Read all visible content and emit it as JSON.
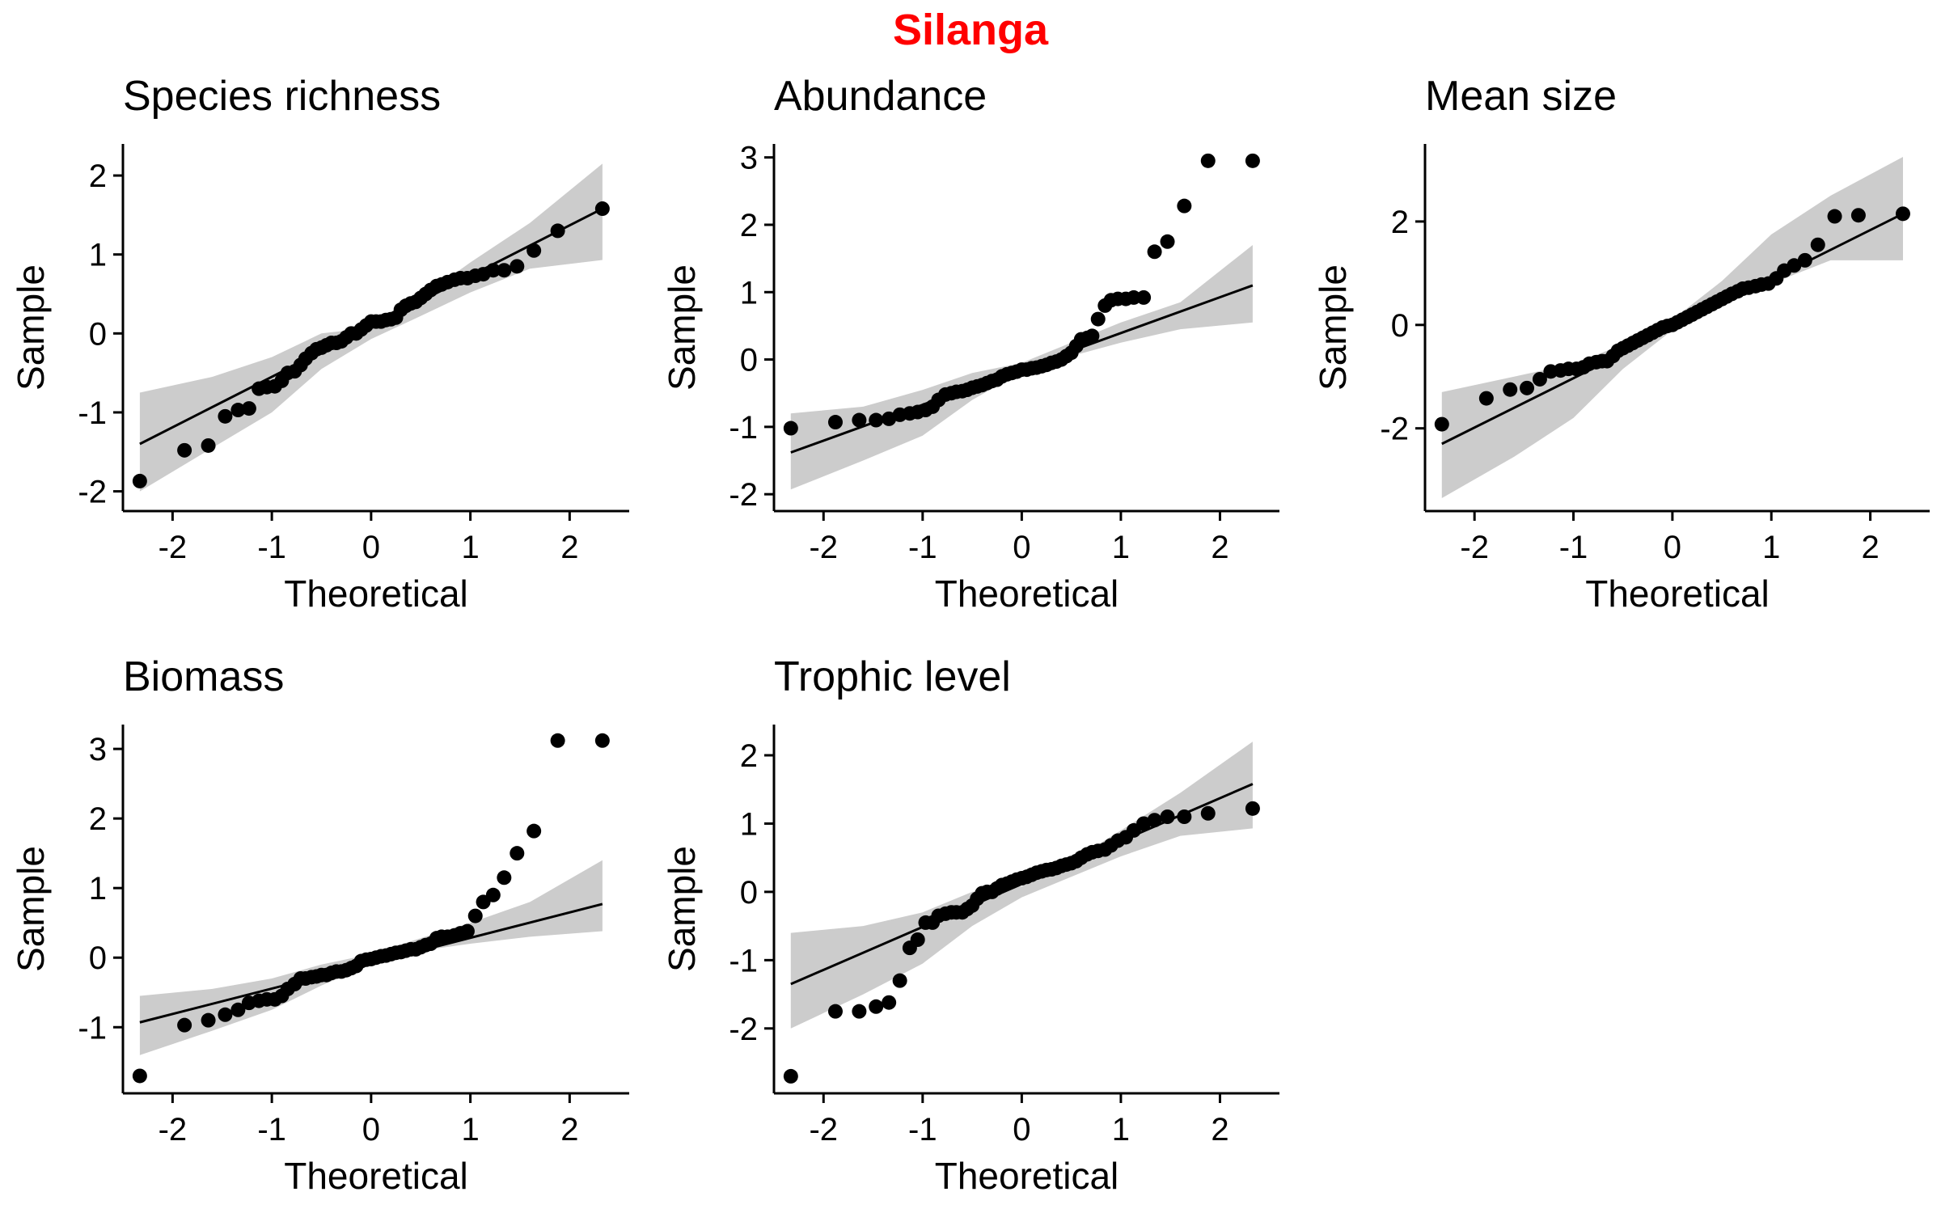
{
  "title": "Silanga",
  "colors": {
    "title": "#ff0000",
    "points": "#000000",
    "band": "#cccccc",
    "line": "#000000"
  },
  "chart_data": [
    {
      "type": "scatter",
      "title": "Species richness",
      "xlabel": "Theoretical",
      "ylabel": "Sample",
      "xlim": [
        -2.5,
        2.6
      ],
      "ylim": [
        -2.25,
        2.4
      ],
      "xticks": [
        "-2",
        "-1",
        "0",
        "1",
        "2"
      ],
      "yticks": [
        "-2",
        "-1",
        "0",
        "1",
        "2"
      ],
      "line": {
        "x": [
          -2.33,
          2.33
        ],
        "y": [
          -1.4,
          1.58
        ]
      },
      "band": {
        "x": [
          -2.33,
          -1.6,
          -1.0,
          -0.5,
          0.0,
          0.5,
          1.0,
          1.6,
          2.33
        ],
        "lower": [
          -2.0,
          -1.45,
          -1.0,
          -0.45,
          -0.07,
          0.22,
          0.52,
          0.82,
          0.93
        ],
        "upper": [
          -0.75,
          -0.55,
          -0.3,
          0.0,
          0.07,
          0.45,
          0.9,
          1.4,
          2.15
        ]
      },
      "points": {
        "x": [
          -2.33,
          -1.88,
          -1.64,
          -1.47,
          -1.34,
          -1.23,
          -1.13,
          -1.05,
          -0.97,
          -0.9,
          -0.84,
          -0.77,
          -0.71,
          -0.66,
          -0.6,
          -0.55,
          -0.5,
          -0.45,
          -0.4,
          -0.35,
          -0.3,
          -0.25,
          -0.2,
          -0.15,
          -0.1,
          -0.05,
          0.0,
          0.05,
          0.1,
          0.15,
          0.2,
          0.25,
          0.3,
          0.35,
          0.4,
          0.45,
          0.5,
          0.55,
          0.6,
          0.66,
          0.71,
          0.77,
          0.84,
          0.9,
          0.97,
          1.05,
          1.13,
          1.23,
          1.34,
          1.47,
          1.64,
          1.88,
          2.33
        ],
        "y": [
          -1.87,
          -1.48,
          -1.42,
          -1.05,
          -0.97,
          -0.95,
          -0.7,
          -0.68,
          -0.67,
          -0.6,
          -0.5,
          -0.48,
          -0.4,
          -0.32,
          -0.25,
          -0.2,
          -0.18,
          -0.15,
          -0.12,
          -0.12,
          -0.1,
          -0.05,
          0.0,
          0.0,
          0.05,
          0.1,
          0.15,
          0.15,
          0.15,
          0.17,
          0.18,
          0.2,
          0.3,
          0.35,
          0.38,
          0.4,
          0.45,
          0.5,
          0.55,
          0.6,
          0.62,
          0.65,
          0.68,
          0.7,
          0.7,
          0.73,
          0.75,
          0.8,
          0.8,
          0.85,
          1.05,
          1.3,
          1.58
        ]
      }
    },
    {
      "type": "scatter",
      "title": "Abundance",
      "xlabel": "Theoretical",
      "ylabel": "Sample",
      "xlim": [
        -2.5,
        2.6
      ],
      "ylim": [
        -2.25,
        3.2
      ],
      "xticks": [
        "-2",
        "-1",
        "0",
        "1",
        "2"
      ],
      "yticks": [
        "-2",
        "-1",
        "0",
        "1",
        "2",
        "3"
      ],
      "line": {
        "x": [
          -2.33,
          2.33
        ],
        "y": [
          -1.38,
          1.1
        ]
      },
      "band": {
        "x": [
          -2.33,
          -1.6,
          -1.0,
          -0.5,
          0.0,
          0.5,
          1.0,
          1.6,
          2.33
        ],
        "lower": [
          -1.93,
          -1.5,
          -1.13,
          -0.6,
          -0.18,
          0.05,
          0.25,
          0.45,
          0.55
        ],
        "upper": [
          -0.8,
          -0.7,
          -0.45,
          -0.2,
          -0.05,
          0.25,
          0.55,
          0.85,
          1.7
        ]
      },
      "points": {
        "x": [
          -2.33,
          -1.88,
          -1.64,
          -1.47,
          -1.34,
          -1.23,
          -1.13,
          -1.05,
          -0.97,
          -0.9,
          -0.84,
          -0.77,
          -0.71,
          -0.66,
          -0.6,
          -0.55,
          -0.5,
          -0.45,
          -0.4,
          -0.35,
          -0.3,
          -0.25,
          -0.2,
          -0.15,
          -0.1,
          -0.05,
          0.0,
          0.05,
          0.1,
          0.15,
          0.2,
          0.25,
          0.3,
          0.35,
          0.4,
          0.45,
          0.5,
          0.55,
          0.6,
          0.66,
          0.71,
          0.77,
          0.84,
          0.9,
          0.97,
          1.05,
          1.13,
          1.23,
          1.34,
          1.47,
          1.64,
          1.88,
          2.33
        ],
        "y": [
          -1.02,
          -0.93,
          -0.9,
          -0.9,
          -0.88,
          -0.82,
          -0.8,
          -0.78,
          -0.75,
          -0.7,
          -0.6,
          -0.52,
          -0.5,
          -0.48,
          -0.47,
          -0.45,
          -0.42,
          -0.4,
          -0.38,
          -0.35,
          -0.32,
          -0.3,
          -0.25,
          -0.22,
          -0.2,
          -0.18,
          -0.15,
          -0.15,
          -0.13,
          -0.12,
          -0.1,
          -0.08,
          -0.05,
          -0.03,
          0.0,
          0.05,
          0.1,
          0.2,
          0.3,
          0.32,
          0.35,
          0.6,
          0.8,
          0.88,
          0.9,
          0.9,
          0.92,
          0.92,
          1.6,
          1.75,
          2.28,
          2.95,
          2.95
        ]
      }
    },
    {
      "type": "scatter",
      "title": "Mean size",
      "xlabel": "Theoretical",
      "ylabel": "Sample",
      "xlim": [
        -2.5,
        2.6
      ],
      "ylim": [
        -3.6,
        3.5
      ],
      "xticks": [
        "-2",
        "-1",
        "0",
        "1",
        "2"
      ],
      "yticks": [
        "-2",
        "0",
        "2"
      ],
      "line": {
        "x": [
          -2.33,
          2.33
        ],
        "y": [
          -2.3,
          2.15
        ]
      },
      "band": {
        "x": [
          -2.33,
          -1.6,
          -1.0,
          -0.5,
          0.0,
          0.5,
          1.0,
          1.6,
          2.33
        ],
        "lower": [
          -3.35,
          -2.55,
          -1.8,
          -0.85,
          -0.1,
          0.38,
          0.8,
          1.25,
          1.25
        ],
        "upper": [
          -1.3,
          -1.0,
          -0.75,
          -0.38,
          0.1,
          0.85,
          1.75,
          2.5,
          3.25
        ]
      },
      "points": {
        "x": [
          -2.33,
          -1.88,
          -1.64,
          -1.47,
          -1.34,
          -1.23,
          -1.13,
          -1.05,
          -0.97,
          -0.9,
          -0.84,
          -0.77,
          -0.71,
          -0.66,
          -0.6,
          -0.55,
          -0.5,
          -0.45,
          -0.4,
          -0.35,
          -0.3,
          -0.25,
          -0.2,
          -0.15,
          -0.1,
          -0.05,
          0.0,
          0.05,
          0.1,
          0.15,
          0.2,
          0.25,
          0.3,
          0.35,
          0.4,
          0.45,
          0.5,
          0.55,
          0.6,
          0.66,
          0.71,
          0.77,
          0.84,
          0.9,
          0.97,
          1.05,
          1.13,
          1.23,
          1.34,
          1.47,
          1.64,
          1.88,
          2.33
        ],
        "y": [
          -1.92,
          -1.42,
          -1.25,
          -1.22,
          -1.05,
          -0.9,
          -0.88,
          -0.85,
          -0.85,
          -0.82,
          -0.75,
          -0.72,
          -0.7,
          -0.7,
          -0.6,
          -0.5,
          -0.45,
          -0.4,
          -0.35,
          -0.3,
          -0.25,
          -0.2,
          -0.15,
          -0.1,
          -0.05,
          -0.02,
          0.0,
          0.05,
          0.1,
          0.15,
          0.2,
          0.25,
          0.3,
          0.35,
          0.4,
          0.45,
          0.5,
          0.55,
          0.6,
          0.65,
          0.7,
          0.72,
          0.75,
          0.78,
          0.8,
          0.9,
          1.05,
          1.15,
          1.25,
          1.55,
          2.1,
          2.12,
          2.15
        ]
      }
    },
    {
      "type": "scatter",
      "title": "Biomass",
      "xlabel": "Theoretical",
      "ylabel": "Sample",
      "xlim": [
        -2.5,
        2.6
      ],
      "ylim": [
        -1.95,
        3.35
      ],
      "xticks": [
        "-2",
        "-1",
        "0",
        "1",
        "2"
      ],
      "yticks": [
        "-1",
        "0",
        "1",
        "2",
        "3"
      ],
      "line": {
        "x": [
          -2.33,
          2.33
        ],
        "y": [
          -0.93,
          0.77
        ]
      },
      "band": {
        "x": [
          -2.33,
          -1.6,
          -1.0,
          -0.5,
          0.0,
          0.5,
          1.0,
          1.6,
          2.33
        ],
        "lower": [
          -1.4,
          -1.05,
          -0.75,
          -0.4,
          -0.1,
          0.1,
          0.2,
          0.3,
          0.38
        ],
        "upper": [
          -0.55,
          -0.45,
          -0.3,
          -0.1,
          0.05,
          0.28,
          0.5,
          0.8,
          1.4
        ]
      },
      "points": {
        "x": [
          -2.33,
          -1.88,
          -1.64,
          -1.47,
          -1.34,
          -1.23,
          -1.13,
          -1.05,
          -0.97,
          -0.9,
          -0.84,
          -0.77,
          -0.71,
          -0.66,
          -0.6,
          -0.55,
          -0.5,
          -0.45,
          -0.4,
          -0.35,
          -0.3,
          -0.25,
          -0.2,
          -0.15,
          -0.1,
          -0.05,
          0.0,
          0.05,
          0.1,
          0.15,
          0.2,
          0.25,
          0.3,
          0.35,
          0.4,
          0.45,
          0.5,
          0.55,
          0.6,
          0.66,
          0.71,
          0.77,
          0.84,
          0.9,
          0.97,
          1.05,
          1.13,
          1.23,
          1.34,
          1.47,
          1.64,
          1.88,
          2.33
        ],
        "y": [
          -1.7,
          -0.97,
          -0.9,
          -0.82,
          -0.75,
          -0.65,
          -0.62,
          -0.6,
          -0.6,
          -0.55,
          -0.45,
          -0.38,
          -0.3,
          -0.3,
          -0.28,
          -0.27,
          -0.25,
          -0.25,
          -0.22,
          -0.2,
          -0.2,
          -0.18,
          -0.15,
          -0.12,
          -0.05,
          -0.03,
          -0.02,
          0.0,
          0.02,
          0.03,
          0.05,
          0.07,
          0.08,
          0.1,
          0.12,
          0.12,
          0.15,
          0.18,
          0.2,
          0.28,
          0.3,
          0.3,
          0.32,
          0.35,
          0.38,
          0.6,
          0.8,
          0.9,
          1.15,
          1.5,
          1.82,
          3.12,
          3.12
        ]
      }
    },
    {
      "type": "scatter",
      "title": "Trophic level",
      "xlabel": "Theoretical",
      "ylabel": "Sample",
      "xlim": [
        -2.5,
        2.6
      ],
      "ylim": [
        -2.95,
        2.45
      ],
      "xticks": [
        "-2",
        "-1",
        "0",
        "1",
        "2"
      ],
      "yticks": [
        "-2",
        "-1",
        "0",
        "1",
        "2"
      ],
      "line": {
        "x": [
          -2.33,
          2.33
        ],
        "y": [
          -1.35,
          1.58
        ]
      },
      "band": {
        "x": [
          -2.33,
          -1.6,
          -1.0,
          -0.5,
          0.0,
          0.5,
          1.0,
          1.6,
          2.33
        ],
        "lower": [
          -2.0,
          -1.5,
          -1.05,
          -0.5,
          -0.08,
          0.22,
          0.52,
          0.82,
          0.93
        ],
        "upper": [
          -0.6,
          -0.5,
          -0.3,
          0.0,
          0.08,
          0.45,
          0.9,
          1.45,
          2.2
        ]
      },
      "points": {
        "x": [
          -2.33,
          -1.88,
          -1.64,
          -1.47,
          -1.34,
          -1.23,
          -1.13,
          -1.05,
          -0.97,
          -0.9,
          -0.84,
          -0.77,
          -0.71,
          -0.66,
          -0.6,
          -0.55,
          -0.5,
          -0.45,
          -0.4,
          -0.35,
          -0.3,
          -0.25,
          -0.2,
          -0.15,
          -0.1,
          -0.05,
          0.0,
          0.05,
          0.1,
          0.15,
          0.2,
          0.25,
          0.3,
          0.35,
          0.4,
          0.45,
          0.5,
          0.55,
          0.6,
          0.66,
          0.71,
          0.77,
          0.84,
          0.9,
          0.97,
          1.05,
          1.13,
          1.23,
          1.34,
          1.47,
          1.64,
          1.88,
          2.33
        ],
        "y": [
          -2.7,
          -1.75,
          -1.75,
          -1.68,
          -1.62,
          -1.3,
          -0.82,
          -0.7,
          -0.45,
          -0.45,
          -0.35,
          -0.32,
          -0.3,
          -0.3,
          -0.3,
          -0.25,
          -0.2,
          -0.1,
          -0.02,
          0.0,
          0.0,
          0.05,
          0.1,
          0.12,
          0.15,
          0.18,
          0.2,
          0.22,
          0.25,
          0.28,
          0.3,
          0.32,
          0.33,
          0.35,
          0.38,
          0.4,
          0.42,
          0.45,
          0.5,
          0.55,
          0.58,
          0.6,
          0.62,
          0.68,
          0.75,
          0.8,
          0.9,
          1.0,
          1.05,
          1.1,
          1.1,
          1.15,
          1.22
        ]
      }
    }
  ]
}
